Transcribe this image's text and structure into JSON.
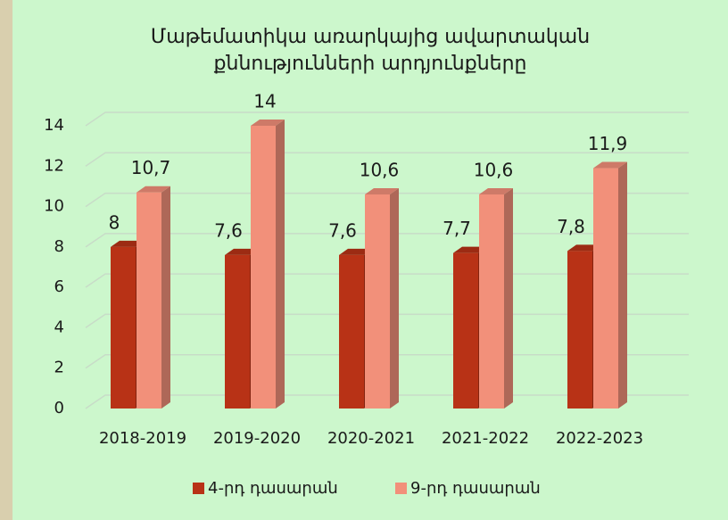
{
  "chart_data": {
    "type": "bar3d",
    "title": [
      "Մաթեմատիկա առարկայից ավարտական",
      "քննությունների արդյունքները"
    ],
    "categories": [
      "2018-2019",
      "2019-2020",
      "2020-2021",
      "2021-2022",
      "2022-2023"
    ],
    "series": [
      {
        "name": "4-րդ դասարան",
        "color": "#b83216",
        "values": [
          8,
          7.6,
          7.6,
          7.7,
          7.8
        ],
        "value_labels": [
          "8",
          "7,6",
          "7,6",
          "7,7",
          "7,8"
        ]
      },
      {
        "name": "9-րդ դասարան",
        "color": "#f2907a",
        "values": [
          10.7,
          14,
          10.6,
          10.6,
          11.9
        ],
        "value_labels": [
          "10,7",
          "14",
          "10,6",
          "10,6",
          "11,9"
        ]
      }
    ],
    "ylim": [
      0,
      14
    ],
    "yticks": [
      0,
      2,
      4,
      6,
      8,
      10,
      12,
      14
    ],
    "grid": true,
    "legend": "bottom"
  }
}
